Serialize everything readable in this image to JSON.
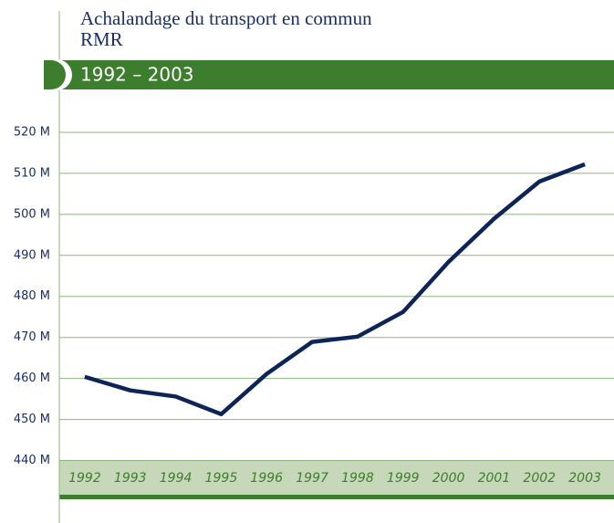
{
  "chart_data": {
    "type": "line",
    "title": [
      "Achalandage du transport en commun",
      "RMR"
    ],
    "subtitle": "1992 – 2003",
    "categories": [
      "1992",
      "1993",
      "1994",
      "1995",
      "1996",
      "1997",
      "1998",
      "1999",
      "2000",
      "2001",
      "2002",
      "2003"
    ],
    "values": [
      460.4,
      457.1,
      455.6,
      451.3,
      461.1,
      468.9,
      470.2,
      476.2,
      488.4,
      498.9,
      508.0,
      512.2
    ],
    "color": "#0d2457",
    "ylim": [
      431,
      530
    ],
    "yticks": [
      {
        "value": 440,
        "label": "440 M"
      },
      {
        "value": 450,
        "label": "450 M"
      },
      {
        "value": 460,
        "label": "460 M"
      },
      {
        "value": 470,
        "label": "470 M"
      },
      {
        "value": 480,
        "label": "480 M"
      },
      {
        "value": 490,
        "label": "490 M"
      },
      {
        "value": 500,
        "label": "500 M"
      },
      {
        "value": 510,
        "label": "510 M"
      },
      {
        "value": 520,
        "label": "520 M"
      }
    ],
    "grid": true
  }
}
